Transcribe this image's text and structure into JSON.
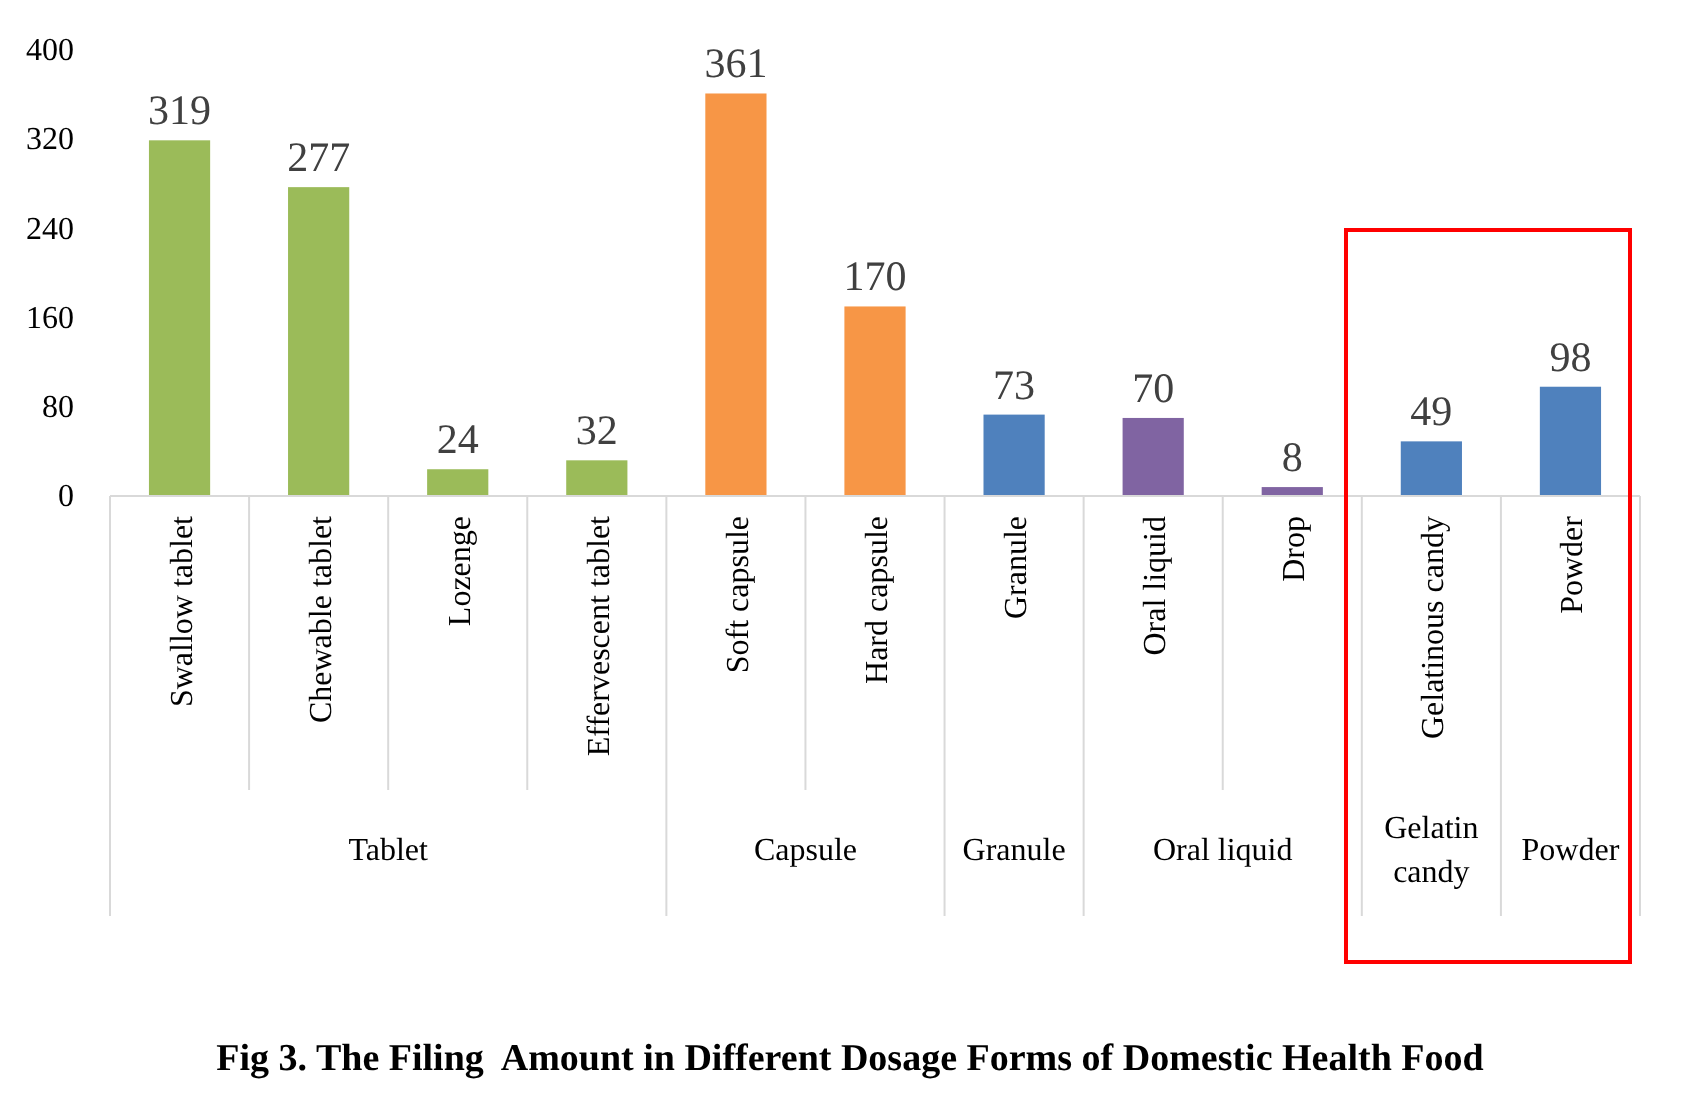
{
  "chart_data": {
    "type": "bar",
    "title": "Fig 3. The Filing  Amount in Different Dosage Forms of Domestic Health Food",
    "categories": [
      "Swallow tablet",
      "Chewable tablet",
      "Lozenge",
      "Effervescent tablet",
      "Soft capsule",
      "Hard capsule",
      "Granule",
      "Oral liquid",
      "Drop",
      "Gelatinous candy",
      "Powder"
    ],
    "series": [
      {
        "color": "#9bbb59",
        "values": [
          319,
          277,
          24,
          32,
          null,
          null,
          null,
          null,
          null,
          null,
          null
        ]
      },
      {
        "color": "#f79646",
        "values": [
          null,
          null,
          null,
          null,
          361,
          170,
          null,
          null,
          null,
          null,
          null
        ]
      },
      {
        "color": "#4f81bd",
        "values": [
          null,
          null,
          null,
          null,
          null,
          null,
          73,
          null,
          null,
          null,
          null
        ]
      },
      {
        "color": "#8064a2",
        "values": [
          null,
          null,
          null,
          null,
          null,
          null,
          null,
          70,
          8,
          null,
          null
        ]
      },
      {
        "color": "#4f81bd",
        "values": [
          null,
          null,
          null,
          null,
          null,
          null,
          null,
          null,
          null,
          49,
          null
        ]
      },
      {
        "color": "#4f81bd",
        "values": [
          null,
          null,
          null,
          null,
          null,
          null,
          null,
          null,
          null,
          null,
          98
        ]
      }
    ],
    "ylim": [
      0,
      400
    ],
    "yticks": [
      0,
      80,
      160,
      240,
      320,
      400
    ],
    "grid": false,
    "data_labels": true,
    "annotations": [
      "Tablet",
      "Capsule",
      "Granule",
      "Oral liquid",
      "Gelatin candy",
      "Powder"
    ]
  }
}
